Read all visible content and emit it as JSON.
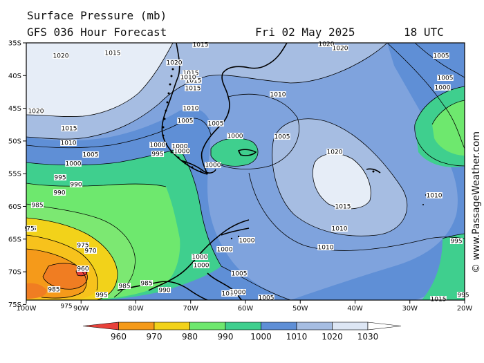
{
  "header": {
    "title": "Surface Pressure (mb)",
    "model": "GFS 036 Hour Forecast",
    "date": "Fri 02 May 2025",
    "time": "18 UTC"
  },
  "copyright": "© www.PassageWeather.com",
  "axes": {
    "lat_labels": [
      "35S",
      "40S",
      "45S",
      "50S",
      "55S",
      "60S",
      "65S",
      "70S",
      "75S"
    ],
    "lon_labels": [
      "100W",
      "90W",
      "80W",
      "70W",
      "60W",
      "50W",
      "40W",
      "30W",
      "20W"
    ]
  },
  "colorbar": {
    "labels": [
      "960",
      "970",
      "980",
      "990",
      "1000",
      "1010",
      "1020",
      "1030"
    ],
    "colors": [
      "#e8413a",
      "#f59a1a",
      "#f2d21a",
      "#6ee86e",
      "#3fcf8e",
      "#5f8fd6",
      "#a6bde2",
      "#dde6f4"
    ]
  },
  "fill_colors": {
    "p1025": "#e6edf7",
    "p1020": "#b9cbe8",
    "p1010": "#7fa3dd",
    "p1000": "#5a8bd4",
    "p995": "#3fcf8e",
    "p990": "#5fe08a",
    "p985": "#7ce872",
    "p980": "#f2e226",
    "p975": "#f7c21c",
    "p970": "#f59a1a",
    "p965": "#f07d22",
    "p960": "#e8413a"
  },
  "isobar_labels": [
    "1020",
    "1015",
    "1015",
    "1020",
    "1015",
    "1015",
    "1010",
    "1015",
    "1010",
    "1005",
    "1000",
    "995",
    "990",
    "990",
    "985",
    "985",
    "75",
    "975",
    "970",
    "960",
    "965",
    "975",
    "985",
    "985",
    "990",
    "995",
    "985",
    "1020",
    "1015",
    "1010",
    "1010",
    "1005",
    "1005",
    "1005",
    "1000",
    "1000",
    "1000",
    "1000",
    "995",
    "1000",
    "1000",
    "1000",
    "1000",
    "1000",
    "1000",
    "1005",
    "1020",
    "1020",
    "1020",
    "1015",
    "1010",
    "1010",
    "1005",
    "1005",
    "1000",
    "995",
    "995",
    "1000",
    "1005",
    "1010",
    "1015"
  ]
}
